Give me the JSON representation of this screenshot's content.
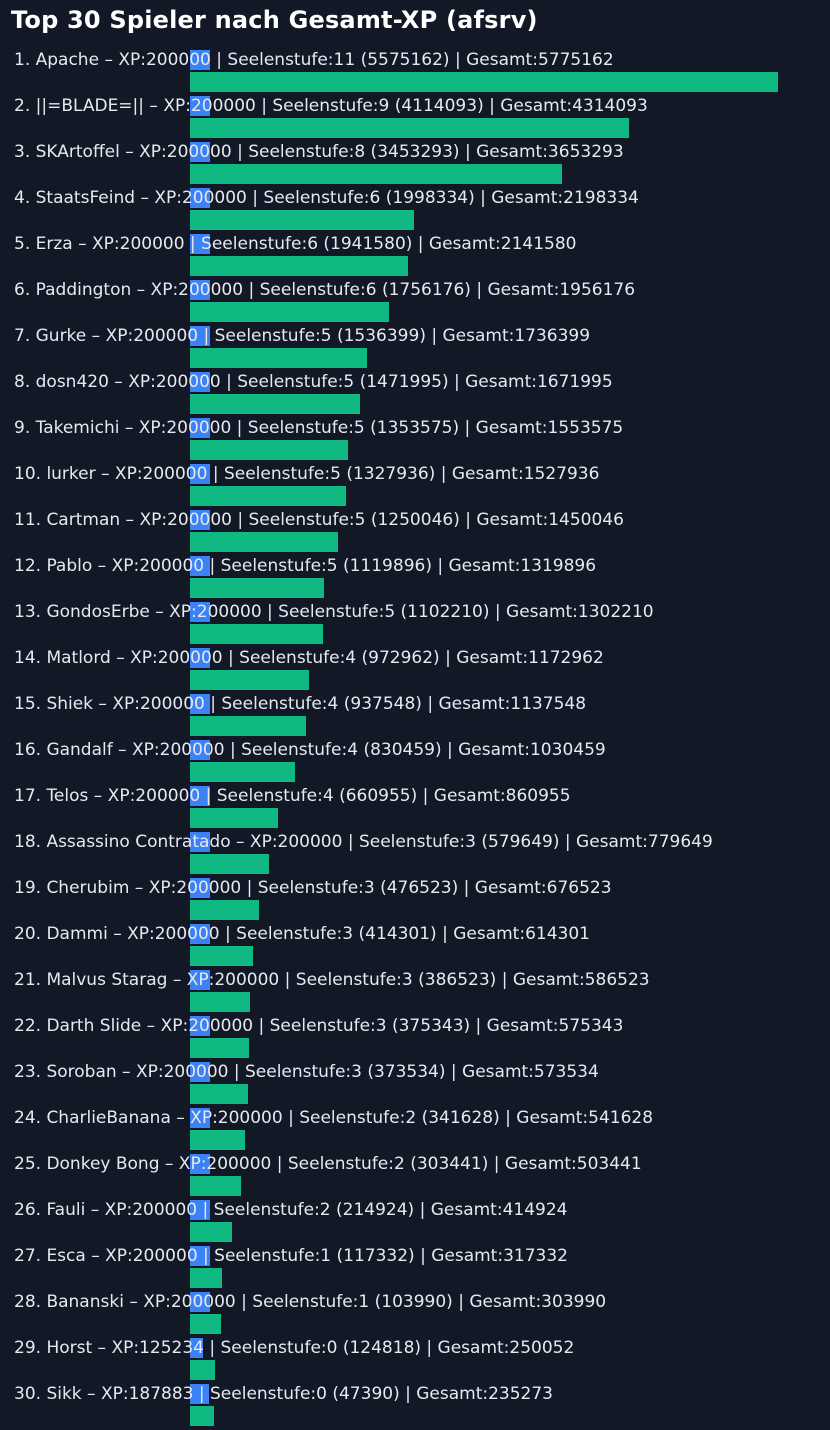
{
  "chart_data": {
    "type": "bar",
    "orientation": "horizontal",
    "title": "Top 30 Spieler nach Gesamt-XP (afsrv)",
    "grid": false,
    "legend": "none",
    "colors": {
      "background": "#121826",
      "xp_bar": "#3b82f6",
      "total_bar": "#10b981",
      "text": "#e6e9ef",
      "title": "#ffffff"
    },
    "x_max": 5775162,
    "rows": [
      {
        "label": "1. Apache – XP:200000 | Seelenstufe:11 (5575162) | Gesamt:5775162",
        "xp": 200000,
        "total": 5775162
      },
      {
        "label": "2. ||=BLADE=|| – XP:200000 | Seelenstufe:9 (4114093) | Gesamt:4314093",
        "xp": 200000,
        "total": 4314093
      },
      {
        "label": "3. SKArtoffel – XP:200000 | Seelenstufe:8 (3453293) | Gesamt:3653293",
        "xp": 200000,
        "total": 3653293
      },
      {
        "label": "4. StaatsFeind – XP:200000 | Seelenstufe:6 (1998334) | Gesamt:2198334",
        "xp": 200000,
        "total": 2198334
      },
      {
        "label": "5. Erza – XP:200000 | Seelenstufe:6 (1941580) | Gesamt:2141580",
        "xp": 200000,
        "total": 2141580
      },
      {
        "label": "6. Paddington – XP:200000 | Seelenstufe:6 (1756176) | Gesamt:1956176",
        "xp": 200000,
        "total": 1956176
      },
      {
        "label": "7. Gurke – XP:200000 | Seelenstufe:5 (1536399) | Gesamt:1736399",
        "xp": 200000,
        "total": 1736399
      },
      {
        "label": "8. dosn420 – XP:200000 | Seelenstufe:5 (1471995) | Gesamt:1671995",
        "xp": 200000,
        "total": 1671995
      },
      {
        "label": "9. Takemichi – XP:200000 | Seelenstufe:5 (1353575) | Gesamt:1553575",
        "xp": 200000,
        "total": 1553575
      },
      {
        "label": "10. lurker – XP:200000 | Seelenstufe:5 (1327936) | Gesamt:1527936",
        "xp": 200000,
        "total": 1527936
      },
      {
        "label": "11. Cartman – XP:200000 | Seelenstufe:5 (1250046) | Gesamt:1450046",
        "xp": 200000,
        "total": 1450046
      },
      {
        "label": "12. Pablo – XP:200000 | Seelenstufe:5 (1119896) | Gesamt:1319896",
        "xp": 200000,
        "total": 1319896
      },
      {
        "label": "13. GondosErbe – XP:200000 | Seelenstufe:5 (1102210) | Gesamt:1302210",
        "xp": 200000,
        "total": 1302210
      },
      {
        "label": "14. Matlord – XP:200000 | Seelenstufe:4 (972962) | Gesamt:1172962",
        "xp": 200000,
        "total": 1172962
      },
      {
        "label": "15. Shiek – XP:200000 | Seelenstufe:4 (937548) | Gesamt:1137548",
        "xp": 200000,
        "total": 1137548
      },
      {
        "label": "16. Gandalf – XP:200000 | Seelenstufe:4 (830459) | Gesamt:1030459",
        "xp": 200000,
        "total": 1030459
      },
      {
        "label": "17. Telos – XP:200000 | Seelenstufe:4 (660955) | Gesamt:860955",
        "xp": 200000,
        "total": 860955
      },
      {
        "label": "18. Assassino Contratado – XP:200000 | Seelenstufe:3 (579649) | Gesamt:779649",
        "xp": 200000,
        "total": 779649
      },
      {
        "label": "19. Cherubim – XP:200000 | Seelenstufe:3 (476523) | Gesamt:676523",
        "xp": 200000,
        "total": 676523
      },
      {
        "label": "20. Dammi – XP:200000 | Seelenstufe:3 (414301) | Gesamt:614301",
        "xp": 200000,
        "total": 614301
      },
      {
        "label": "21. Malvus Starag – XP:200000 | Seelenstufe:3 (386523) | Gesamt:586523",
        "xp": 200000,
        "total": 586523
      },
      {
        "label": "22. Darth Slide – XP:200000 | Seelenstufe:3 (375343) | Gesamt:575343",
        "xp": 200000,
        "total": 575343
      },
      {
        "label": "23. Soroban – XP:200000 | Seelenstufe:3 (373534) | Gesamt:573534",
        "xp": 200000,
        "total": 573534
      },
      {
        "label": "24. CharlieBanana – XP:200000 | Seelenstufe:2 (341628) | Gesamt:541628",
        "xp": 200000,
        "total": 541628
      },
      {
        "label": "25. Donkey Bong – XP:200000 | Seelenstufe:2 (303441) | Gesamt:503441",
        "xp": 200000,
        "total": 503441
      },
      {
        "label": "26. Fauli – XP:200000 | Seelenstufe:2 (214924) | Gesamt:414924",
        "xp": 200000,
        "total": 414924
      },
      {
        "label": "27. Esca – XP:200000 | Seelenstufe:1 (117332) | Gesamt:317332",
        "xp": 200000,
        "total": 317332
      },
      {
        "label": "28. Bananski – XP:200000 | Seelenstufe:1 (103990) | Gesamt:303990",
        "xp": 200000,
        "total": 303990
      },
      {
        "label": "29. Horst – XP:125234 | Seelenstufe:0 (124818) | Gesamt:250052",
        "xp": 125234,
        "total": 250052
      },
      {
        "label": "30. Sikk – XP:187883 | Seelenstufe:0 (47390) | Gesamt:235273",
        "xp": 187883,
        "total": 235273
      }
    ]
  }
}
